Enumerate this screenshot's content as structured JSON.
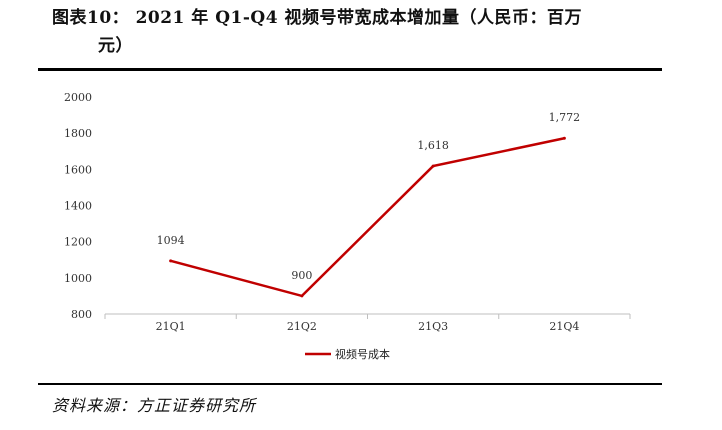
{
  "header": {
    "title_line1": "图表10： 2021 年 Q1-Q4 视频号带宽成本增加量（人民币：百万",
    "title_line2": "元）"
  },
  "footer": {
    "source": "资料来源：方正证券研究所"
  },
  "colors": {
    "series": "#c00000",
    "axis": "#bfbfbf",
    "rule": "#000000"
  },
  "chart_data": {
    "type": "line",
    "categories": [
      "21Q1",
      "21Q2",
      "21Q3",
      "21Q4"
    ],
    "series": [
      {
        "name": "视频号成本",
        "values": [
          1094,
          900,
          1618,
          1772
        ],
        "labels": [
          "1094",
          "900",
          "1,618",
          "1,772"
        ]
      }
    ],
    "ylim": [
      800,
      2000
    ],
    "yticks": [
      800,
      1000,
      1200,
      1400,
      1600,
      1800,
      2000
    ],
    "grid": false,
    "legend": "bottom-center"
  }
}
